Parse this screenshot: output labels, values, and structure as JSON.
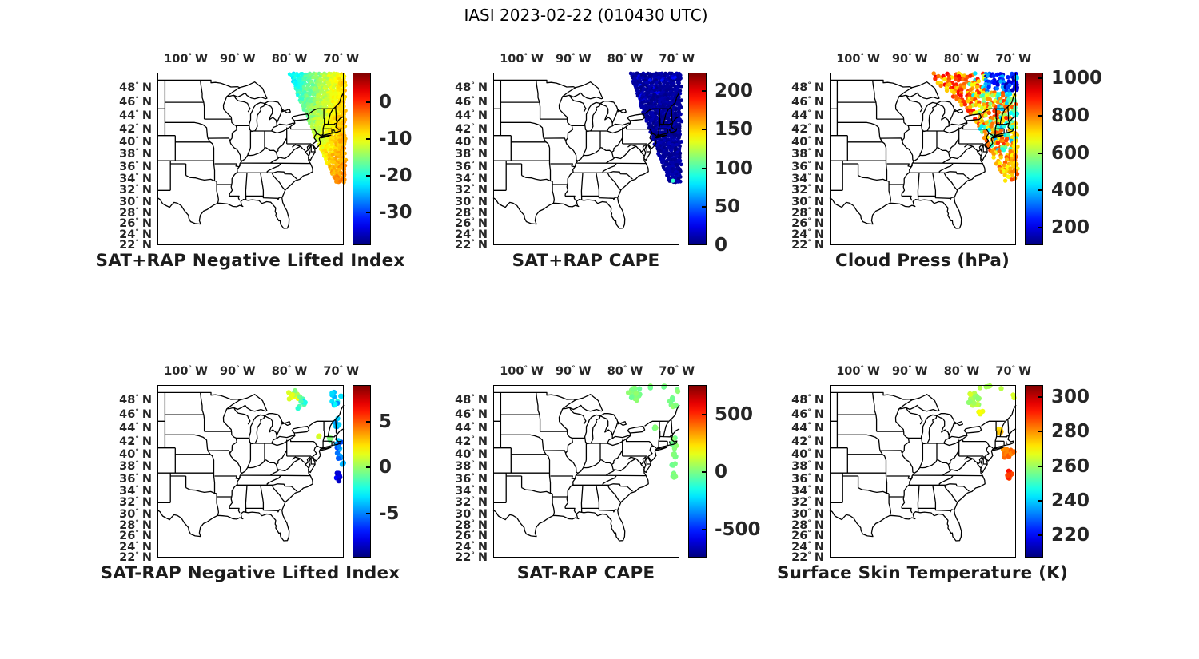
{
  "figure_title": "IASI 2023-02-22 (010430 UTC)",
  "axes": {
    "projection": "mercator",
    "extent": {
      "lon_min": -105.5,
      "lon_max": -69.5,
      "lat_min": 22,
      "lat_max": 50
    },
    "lon_ticks": [
      {
        "value": -100,
        "label": "100° W"
      },
      {
        "value": -90,
        "label": "90° W"
      },
      {
        "value": -80,
        "label": "80° W"
      },
      {
        "value": -70,
        "label": "70° W"
      }
    ],
    "lat_ticks": [
      {
        "value": 48,
        "label": "48° N"
      },
      {
        "value": 46,
        "label": "46° N"
      },
      {
        "value": 44,
        "label": "44° N"
      },
      {
        "value": 42,
        "label": "42° N"
      },
      {
        "value": 40,
        "label": "40° N"
      },
      {
        "value": 38,
        "label": "38° N"
      },
      {
        "value": 36,
        "label": "36° N"
      },
      {
        "value": 34,
        "label": "34° N"
      },
      {
        "value": 32,
        "label": "32° N"
      },
      {
        "value": 30,
        "label": "30° N"
      },
      {
        "value": 28,
        "label": "28° N"
      },
      {
        "value": 26,
        "label": "26° N"
      },
      {
        "value": 24,
        "label": "24° N"
      },
      {
        "value": 22,
        "label": "22° N"
      }
    ]
  },
  "chart_data": [
    {
      "type": "scatter-map",
      "title": "SAT+RAP Negative Lifted Index",
      "colormap": "jet",
      "colorbar": {
        "vmin": -39,
        "vmax": 8,
        "ticks": [
          0,
          -10,
          -20,
          -30
        ]
      },
      "swath": {
        "mode": "gradient2d",
        "r": 2.4,
        "step": 3,
        "edge": [
          [
            50,
            -79.9
          ],
          [
            33.2,
            -70.8
          ]
        ],
        "lat_tip": 33.2,
        "v_left_top": -22.5,
        "v_right_top": -7.5,
        "v_bottom": -4,
        "noise": 1.7
      },
      "clusters": []
    },
    {
      "type": "scatter-map",
      "title": "SAT+RAP CAPE",
      "colormap": "jet",
      "colorbar": {
        "vmin": 0,
        "vmax": 224,
        "ticks": [
          200,
          150,
          100,
          50,
          0
        ]
      },
      "swath": {
        "mode": "uniform",
        "r": 2.4,
        "step": 3,
        "edge": [
          [
            50,
            -78.9
          ],
          [
            33.4,
            -71.2
          ]
        ],
        "lat_tip": 33.4,
        "v0": 1,
        "v1": 12,
        "noise": 0,
        "tip_dot": 95
      },
      "clusters": []
    },
    {
      "type": "scatter-map",
      "title": "Cloud Press (hPa)",
      "colormap": "jet",
      "colorbar": {
        "vmin": 107,
        "vmax": 1030,
        "ticks": [
          1000,
          800,
          600,
          400,
          200
        ]
      },
      "swath": {
        "mode": "cloud",
        "r": 2.7,
        "step": 3.5,
        "fill": 0.72,
        "edge": [
          [
            50,
            -86.3
          ],
          [
            44,
            -77.5
          ],
          [
            33.5,
            -71.3
          ]
        ],
        "lat_tip": 33.5
      },
      "clusters": []
    },
    {
      "type": "scatter-map",
      "title": "SAT-RAP Negative Lifted Index",
      "colormap": "jet",
      "colorbar": {
        "vmin": -9.8,
        "vmax": 9,
        "ticks": [
          5,
          0,
          -5
        ]
      },
      "clusters": [
        [
          -79.3,
          48.8,
          1.5,
          1.0,
          14,
          -1,
          2
        ],
        [
          -77.5,
          47.6,
          1.0,
          0.9,
          9,
          -3.5,
          -1
        ],
        [
          -71.3,
          48.0,
          1.0,
          1.1,
          10,
          -5,
          -2
        ],
        [
          -69.9,
          48.6,
          0.3,
          0.3,
          2,
          -3.5,
          -2.5
        ],
        [
          -70.7,
          44.8,
          0.7,
          0.8,
          7,
          -6,
          -3
        ],
        [
          -74.4,
          42.8,
          0.4,
          0.3,
          3,
          0.5,
          2
        ],
        [
          -72.3,
          42.4,
          0.5,
          0.4,
          4,
          -2,
          1
        ],
        [
          -70.6,
          41.3,
          0.8,
          1.0,
          12,
          -6.5,
          -3
        ],
        [
          -70.4,
          39.6,
          0.7,
          0.8,
          8,
          -6,
          -4
        ],
        [
          -69.8,
          38.6,
          0.3,
          0.3,
          2,
          -4.5,
          -3.5
        ],
        [
          -70.7,
          36.5,
          0.6,
          0.9,
          9,
          -9.5,
          -7
        ]
      ]
    },
    {
      "type": "scatter-map",
      "title": "SAT-RAP CAPE",
      "colormap": "jet",
      "colorbar": {
        "vmin": -744,
        "vmax": 756,
        "ticks": [
          500,
          0,
          -500
        ]
      },
      "clusters": [
        [
          -77.9,
          48.8,
          1.6,
          1.1,
          22,
          -25,
          35
        ],
        [
          -74.9,
          49.6,
          0.5,
          0.3,
          3,
          -25,
          35
        ],
        [
          -72.5,
          49.8,
          0.6,
          0.25,
          3,
          -25,
          35
        ],
        [
          -70.7,
          47.7,
          0.8,
          0.8,
          9,
          -25,
          35
        ],
        [
          -69.8,
          49.3,
          0.3,
          0.3,
          2,
          -25,
          35
        ],
        [
          -74.2,
          44.2,
          0.45,
          0.55,
          4,
          -25,
          35
        ],
        [
          -70.6,
          41.8,
          0.75,
          1.0,
          11,
          -25,
          35
        ],
        [
          -70.3,
          40.0,
          0.5,
          0.5,
          4,
          -25,
          35
        ],
        [
          -70.6,
          38.3,
          0.45,
          0.45,
          4,
          -25,
          35
        ],
        [
          -70.6,
          36.7,
          0.5,
          0.7,
          6,
          -25,
          35
        ]
      ]
    },
    {
      "type": "scatter-map",
      "title": "Surface Skin Temperature (K)",
      "colormap": "jet",
      "colorbar": {
        "vmin": 207,
        "vmax": 307,
        "ticks": [
          300,
          280,
          260,
          240,
          220
        ]
      },
      "clusters": [
        [
          -77.4,
          48.2,
          1.5,
          1.6,
          22,
          258,
          266
        ],
        [
          -76.3,
          46.3,
          0.8,
          0.4,
          4,
          266,
          270
        ],
        [
          -72.4,
          49.5,
          0.2,
          0.2,
          1,
          260,
          263
        ],
        [
          -69.9,
          48.3,
          0.25,
          0.4,
          2,
          262,
          266
        ],
        [
          -74.9,
          49.7,
          0.5,
          0.3,
          3,
          259,
          264
        ],
        [
          -72.5,
          43.5,
          0.8,
          0.7,
          8,
          271,
          277
        ],
        [
          -71.0,
          40.2,
          1.2,
          1.0,
          14,
          279,
          286
        ],
        [
          -70.6,
          36.6,
          0.8,
          0.8,
          9,
          287,
          293
        ]
      ]
    }
  ]
}
